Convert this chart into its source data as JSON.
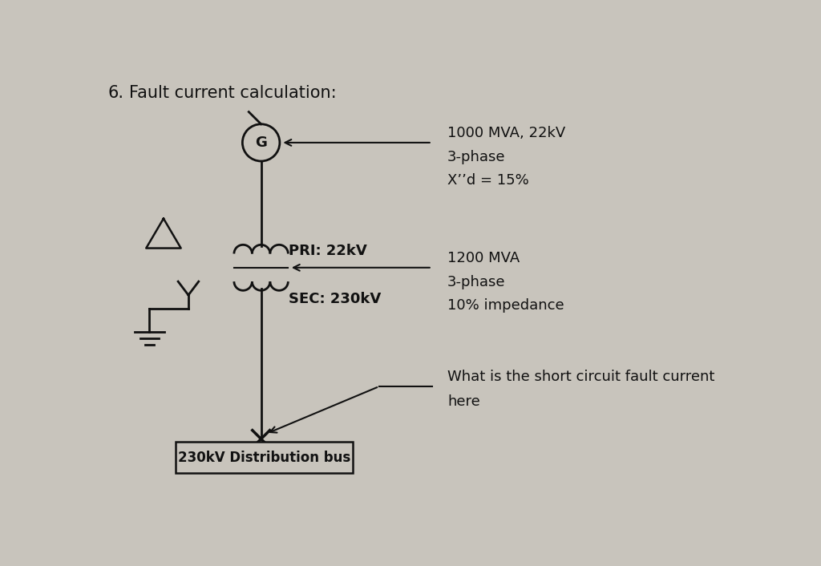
{
  "bg_color": "#c8c4bc",
  "title_number": "6.",
  "title_text": "Fault current calculation:",
  "generator_label": "G",
  "pri_label": "PRI: 22kV",
  "sec_label": "SEC: 230kV",
  "bus_label": "230kV Distribution bus",
  "gen_specs": [
    "1000 MVA, 22kV",
    "3-phase",
    "X’’d = 15%"
  ],
  "xfmr_specs": [
    "1200 MVA",
    "3-phase",
    "10% impedance"
  ],
  "question": [
    "What is the short circuit fault current",
    "here"
  ],
  "text_color": "#111111",
  "line_color": "#111111"
}
